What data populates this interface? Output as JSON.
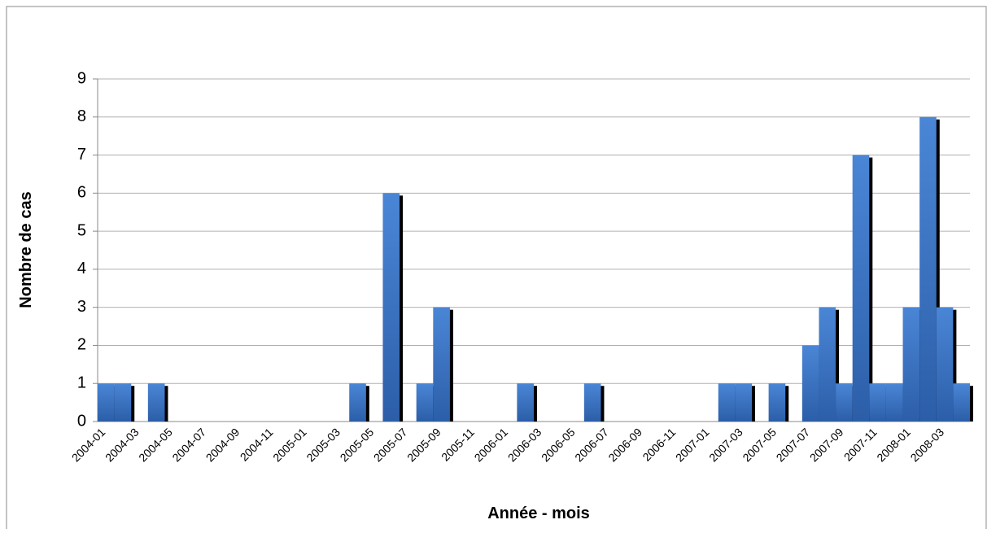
{
  "chart_data": {
    "type": "bar",
    "x_label": "Année - mois",
    "y_label": "Nombre de cas",
    "categories": [
      "2004-01",
      null,
      "2004-03",
      null,
      "2004-05",
      null,
      "2004-07",
      null,
      "2004-09",
      null,
      "2004-11",
      null,
      "2005-01",
      null,
      "2005-03",
      null,
      "2005-05",
      null,
      "2005-07",
      null,
      "2005-09",
      null,
      "2005-11",
      null,
      "2006-01",
      null,
      "2006-03",
      null,
      "2006-05",
      null,
      "2006-07",
      null,
      "2006-09",
      null,
      "2006-11",
      null,
      "2007-01",
      null,
      "2007-03",
      null,
      "2007-05",
      null,
      "2007-07",
      null,
      "2007-09",
      null,
      "2007-11",
      null,
      "2008-01",
      null,
      "2008-03",
      null
    ],
    "values": [
      1,
      1,
      0,
      1,
      0,
      0,
      0,
      0,
      0,
      0,
      0,
      0,
      0,
      0,
      0,
      1,
      0,
      6,
      0,
      1,
      3,
      0,
      0,
      0,
      0,
      1,
      0,
      0,
      0,
      1,
      0,
      0,
      0,
      0,
      0,
      0,
      0,
      1,
      1,
      0,
      1,
      0,
      2,
      3,
      1,
      7,
      1,
      1,
      3,
      8,
      3,
      1
    ],
    "color": "#3b73c4",
    "ylim": [
      0,
      9
    ],
    "yticks": [
      0,
      1,
      2,
      3,
      4,
      5,
      6,
      7,
      8,
      9
    ],
    "grid": true
  }
}
